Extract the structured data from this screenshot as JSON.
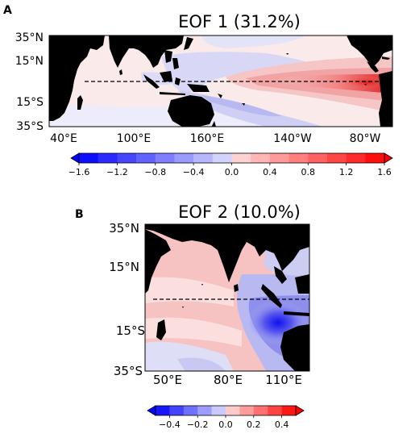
{
  "chart_data": [
    {
      "type": "heatmap",
      "panel_label": "A",
      "title": "EOF 1 (31.2%)",
      "lat_ticks": [
        "35°N",
        "15°N",
        "15°S",
        "35°S"
      ],
      "lon_ticks": [
        "40°E",
        "100°E",
        "160°E",
        "140°W",
        "80°W"
      ],
      "colorbar": {
        "ticks": [
          "−1.6",
          "−1.2",
          "−0.8",
          "−0.4",
          "0.0",
          "0.4",
          "0.8",
          "1.2",
          "1.6"
        ],
        "min": -1.6,
        "max": 1.6,
        "step": 0.2,
        "low_color": "#0000ff",
        "mid_color": "#ffffff",
        "high_color": "#ff0000"
      },
      "equator_line": "dashed"
    },
    {
      "type": "heatmap",
      "panel_label": "B",
      "title": "EOF 2 (10.0%)",
      "lat_ticks": [
        "35°N",
        "15°N",
        "15°S",
        "35°S"
      ],
      "lon_ticks": [
        "50°E",
        "80°E",
        "110°E"
      ],
      "colorbar": {
        "ticks": [
          "−0.4",
          "−0.2",
          "0.0",
          "0.2",
          "0.4"
        ],
        "min": -0.5,
        "max": 0.5,
        "step": 0.1,
        "low_color": "#0000ff",
        "mid_color": "#ffffff",
        "high_color": "#ff0000"
      },
      "equator_line": "dashed"
    }
  ],
  "colors": {
    "land": "#000000",
    "equator_line": "#000000"
  }
}
